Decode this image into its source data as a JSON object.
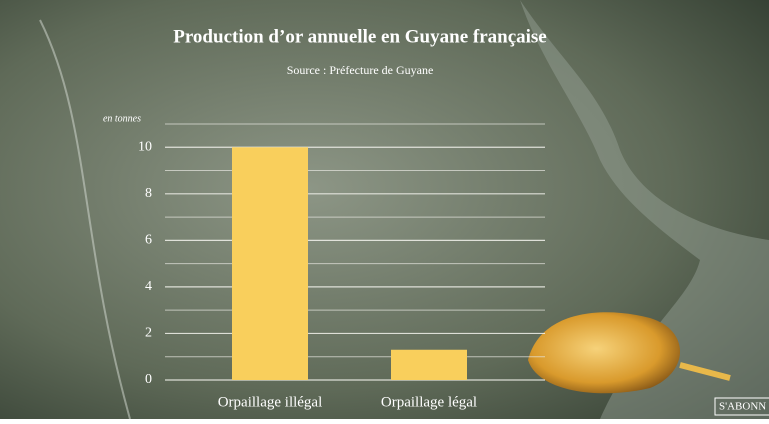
{
  "chart_data": {
    "type": "bar",
    "title": "Production d’or annuelle en Guyane française",
    "subtitle": "Source : Préfecture de Guyane",
    "y_label": "en tonnes",
    "categories": [
      "Orpaillage illégal",
      "Orpaillage légal"
    ],
    "values": [
      10,
      1.3
    ],
    "color": "#f9cf5c",
    "ylim": [
      0,
      11
    ],
    "yticks": [
      0,
      2,
      4,
      6,
      8,
      10
    ],
    "minor_yticks": [
      1,
      3,
      5,
      7,
      9,
      11
    ],
    "grid": true
  },
  "overlay": {
    "button": "S'ABONN"
  }
}
